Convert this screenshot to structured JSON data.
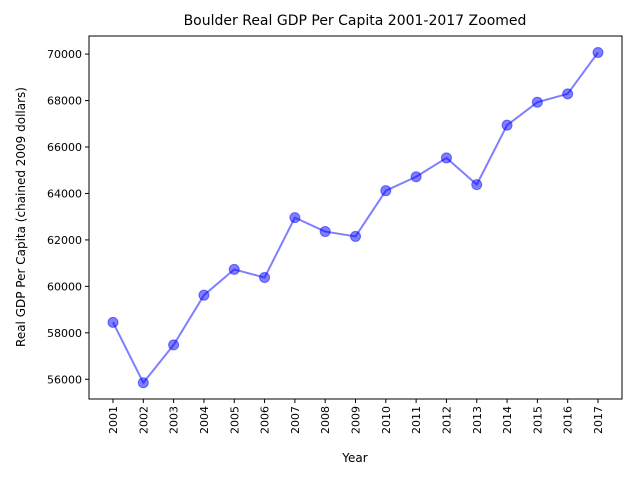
{
  "chart_data": {
    "type": "line",
    "title": "Boulder Real GDP Per Capita 2001-2017 Zoomed",
    "xlabel": "Year",
    "ylabel": "Real GDP Per Capita (chained 2009 dollars)",
    "categories": [
      "2001",
      "2002",
      "2003",
      "2004",
      "2005",
      "2006",
      "2007",
      "2008",
      "2009",
      "2010",
      "2011",
      "2012",
      "2013",
      "2014",
      "2015",
      "2016",
      "2017"
    ],
    "values": [
      58450,
      55850,
      57480,
      59620,
      60730,
      60380,
      62960,
      62360,
      62150,
      64120,
      64720,
      65530,
      64380,
      66940,
      67930,
      68290,
      70070
    ],
    "ylim": [
      55150,
      70780
    ],
    "yticks": [
      56000,
      58000,
      60000,
      62000,
      64000,
      66000,
      68000,
      70000
    ],
    "ytick_labels": [
      "56000",
      "58000",
      "60000",
      "62000",
      "64000",
      "66000",
      "68000",
      "70000"
    ],
    "grid": false,
    "legend": "none",
    "line_color": "#0000ff",
    "marker_color": "#0000ff"
  }
}
